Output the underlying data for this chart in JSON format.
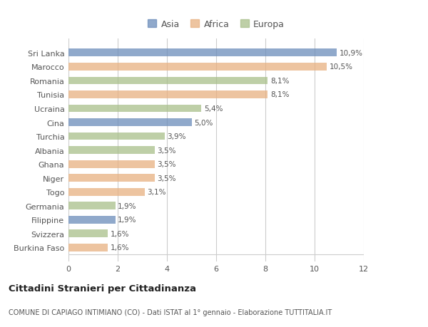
{
  "categories": [
    "Burkina Faso",
    "Svizzera",
    "Filippine",
    "Germania",
    "Togo",
    "Niger",
    "Ghana",
    "Albania",
    "Turchia",
    "Cina",
    "Ucraina",
    "Tunisia",
    "Romania",
    "Marocco",
    "Sri Lanka"
  ],
  "values": [
    1.6,
    1.6,
    1.9,
    1.9,
    3.1,
    3.5,
    3.5,
    3.5,
    3.9,
    5.0,
    5.4,
    8.1,
    8.1,
    10.5,
    10.9
  ],
  "continents": [
    "Africa",
    "Europa",
    "Asia",
    "Europa",
    "Africa",
    "Africa",
    "Africa",
    "Europa",
    "Europa",
    "Asia",
    "Europa",
    "Africa",
    "Europa",
    "Africa",
    "Asia"
  ],
  "colors": {
    "Asia": "#6b8cba",
    "Africa": "#e8b080",
    "Europa": "#a8bf8a"
  },
  "labels": [
    "1,6%",
    "1,6%",
    "1,9%",
    "1,9%",
    "3,1%",
    "3,5%",
    "3,5%",
    "3,5%",
    "3,9%",
    "5,0%",
    "5,4%",
    "8,1%",
    "8,1%",
    "10,5%",
    "10,9%"
  ],
  "title": "Cittadini Stranieri per Cittadinanza",
  "subtitle": "COMUNE DI CAPIAGO INTIMIANO (CO) - Dati ISTAT al 1° gennaio - Elaborazione TUTTITALIA.IT",
  "xlim": [
    0,
    12
  ],
  "xticks": [
    0,
    2,
    4,
    6,
    8,
    10,
    12
  ],
  "legend_labels": [
    "Asia",
    "Africa",
    "Europa"
  ],
  "background_color": "#ffffff",
  "plot_bg_color": "#ffffff"
}
